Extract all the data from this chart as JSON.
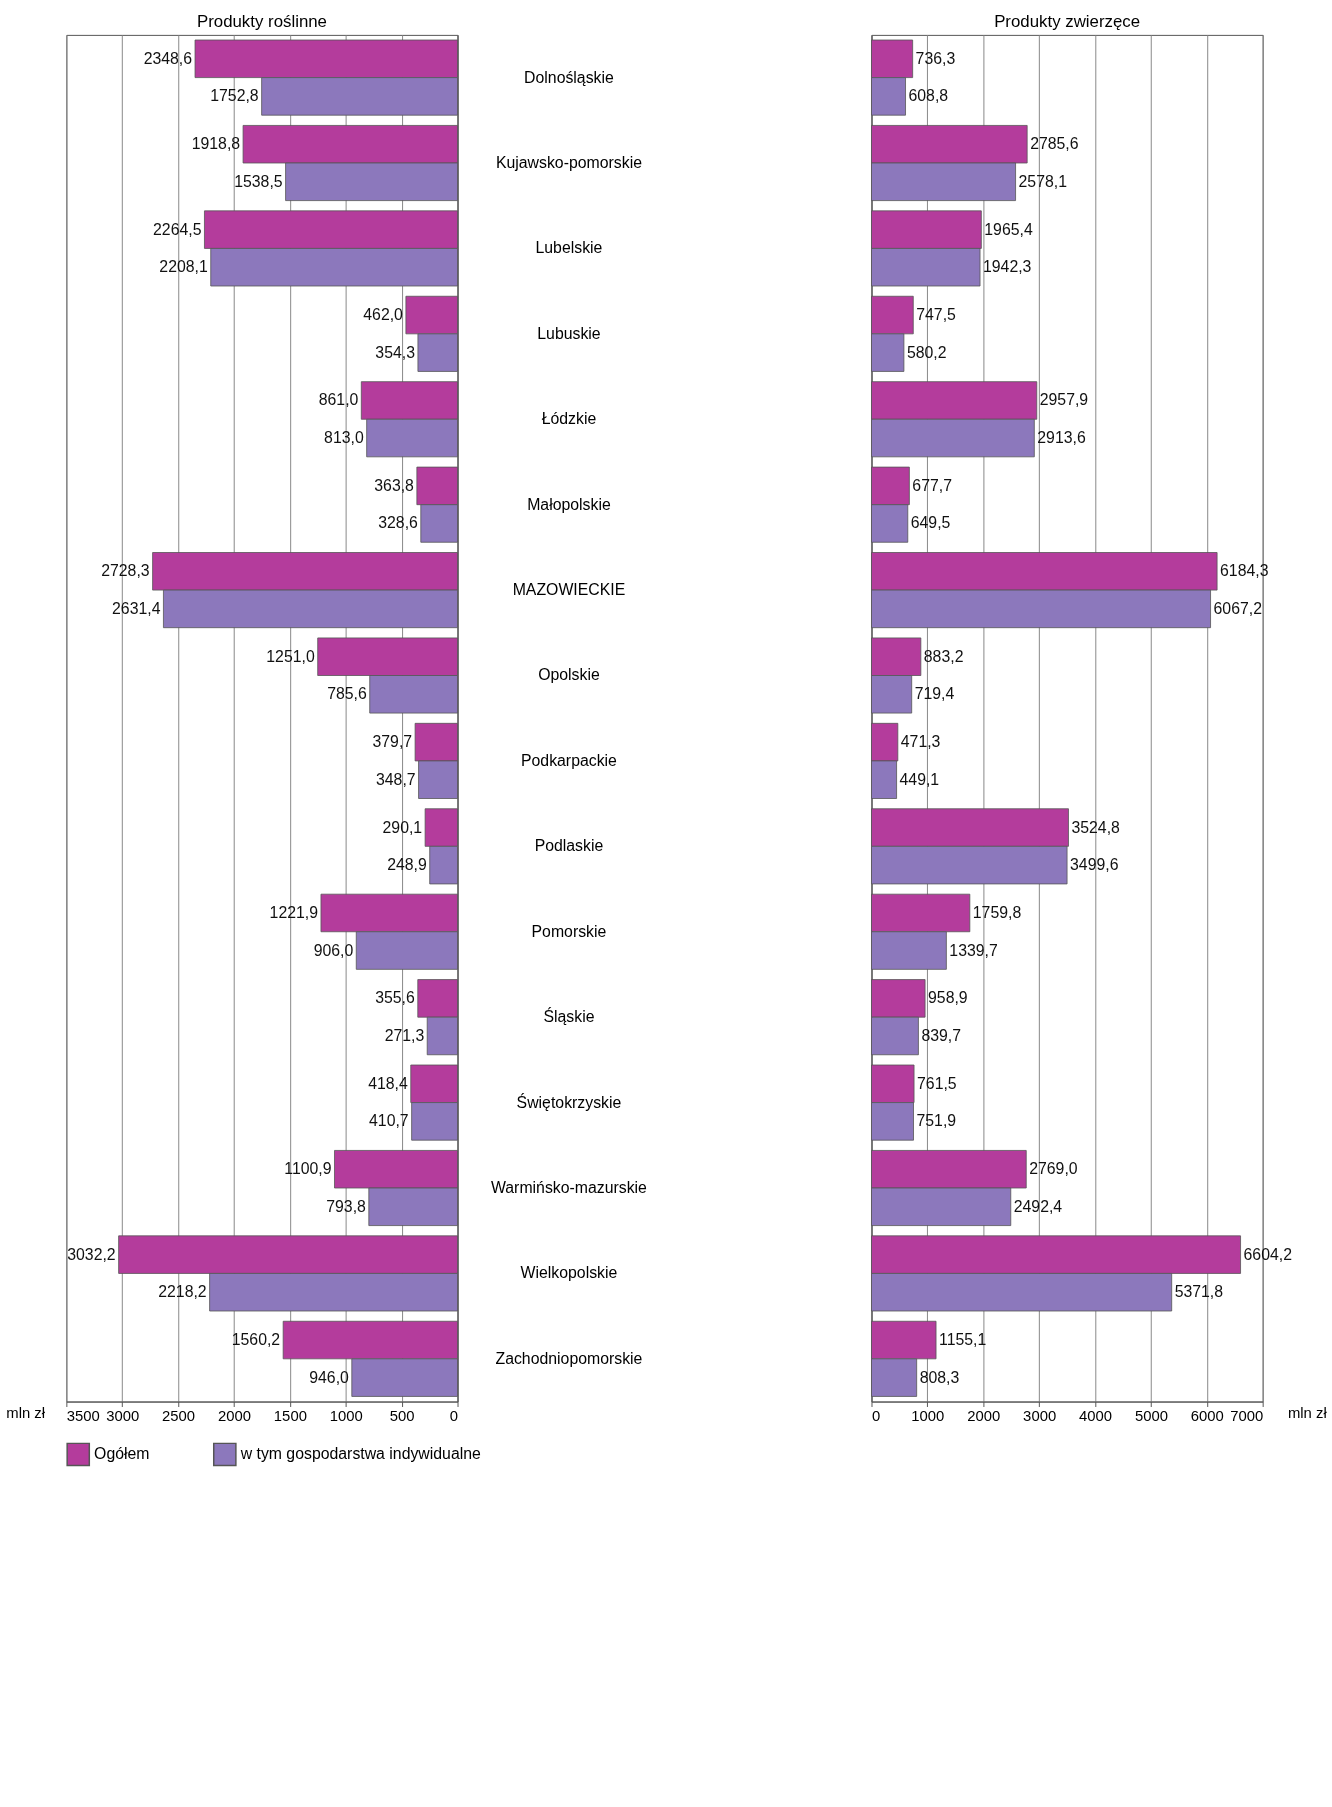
{
  "chart_data": [
    {
      "type": "bar",
      "orientation": "horizontal",
      "title": "Produkty roślinne",
      "xlabel": "mln zł",
      "xlim": [
        3500,
        0
      ],
      "xticks": [
        3500,
        3000,
        2500,
        2000,
        1500,
        1000,
        500,
        0
      ],
      "grid": "x",
      "legend": "bottom",
      "categories": [
        "Dolnośląskie",
        "Kujawsko-pomorskie",
        "Lubelskie",
        "Lubuskie",
        "Łódzkie",
        "Małopolskie",
        "MAZOWIECKIE",
        "Opolskie",
        "Podkarpackie",
        "Podlaskie",
        "Pomorskie",
        "Śląskie",
        "Świętokrzyskie",
        "Warmińsko-mazurskie",
        "Wielkopolskie",
        "Zachodniopomorskie"
      ],
      "series": [
        {
          "name": "Ogółem",
          "color": "#b43c9c",
          "values": [
            2348.6,
            1918.8,
            2264.5,
            462.0,
            861.0,
            363.8,
            2728.3,
            1251.0,
            379.7,
            290.1,
            1221.9,
            355.6,
            418.4,
            1100.9,
            3032.2,
            1560.2
          ],
          "value_labels": [
            "2348,6",
            "1918,8",
            "2264,5",
            "462,0",
            "861,0",
            "363,8",
            "2728,3",
            "1251,0",
            "379,7",
            "290,1",
            "1221,9",
            "355,6",
            "418,4",
            "1100,9",
            "3032,2",
            "1560,2"
          ]
        },
        {
          "name": "w tym gospodarstwa indywidualne",
          "color": "#8c78bc",
          "values": [
            1752.8,
            1538.5,
            2208.1,
            354.3,
            813.0,
            328.6,
            2631.4,
            785.6,
            348.7,
            248.9,
            906.0,
            271.3,
            410.7,
            793.8,
            2218.2,
            946.0
          ],
          "value_labels": [
            "1752,8",
            "1538,5",
            "2208,1",
            "354,3",
            "813,0",
            "328,6",
            "2631,4",
            "785,6",
            "348,7",
            "248,9",
            "906,0",
            "271,3",
            "410,7",
            "793,8",
            "2218,2",
            "946,0"
          ]
        }
      ]
    },
    {
      "type": "bar",
      "orientation": "horizontal",
      "title": "Produkty zwierzęce",
      "xlabel": "mln zł",
      "xlim": [
        0,
        7000
      ],
      "xticks": [
        0,
        1000,
        2000,
        3000,
        4000,
        5000,
        6000,
        7000
      ],
      "grid": "x",
      "legend": "bottom",
      "tick_labels": "x",
      "series": [
        {
          "name": "Ogółem",
          "color": "#b43c9c",
          "values": [
            736.3,
            2785.6,
            1965.4,
            747.5,
            2957.9,
            677.7,
            6184.3,
            883.2,
            471.3,
            3524.8,
            1759.8,
            958.9,
            761.5,
            2769.0,
            6604.2,
            1155.1
          ],
          "value_labels": [
            "736,3",
            "2785,6",
            "1965,4",
            "747,5",
            "2957,9",
            "677,7",
            "6184,3",
            "883,2",
            "471,3",
            "3524,8",
            "1759,8",
            "958,9",
            "761,5",
            "2769,0",
            "6604,2",
            "1155,1"
          ]
        },
        {
          "name": "w tym gospodarstwa indywidualne",
          "color": "#8c78bc",
          "values": [
            608.8,
            2578.1,
            1942.3,
            580.2,
            2913.6,
            649.5,
            6067.2,
            719.4,
            449.1,
            3499.6,
            1339.7,
            839.7,
            751.9,
            2492.4,
            5371.8,
            808.3
          ],
          "value_labels": [
            "608,8",
            "2578,1",
            "1942,3",
            "580,2",
            "2913,6",
            "649,5",
            "6067,2",
            "719,4",
            "449,1",
            "3499,6",
            "1339,7",
            "839,7",
            "751,9",
            "2492,4",
            "5371,8",
            "808,3"
          ]
        }
      ]
    }
  ]
}
